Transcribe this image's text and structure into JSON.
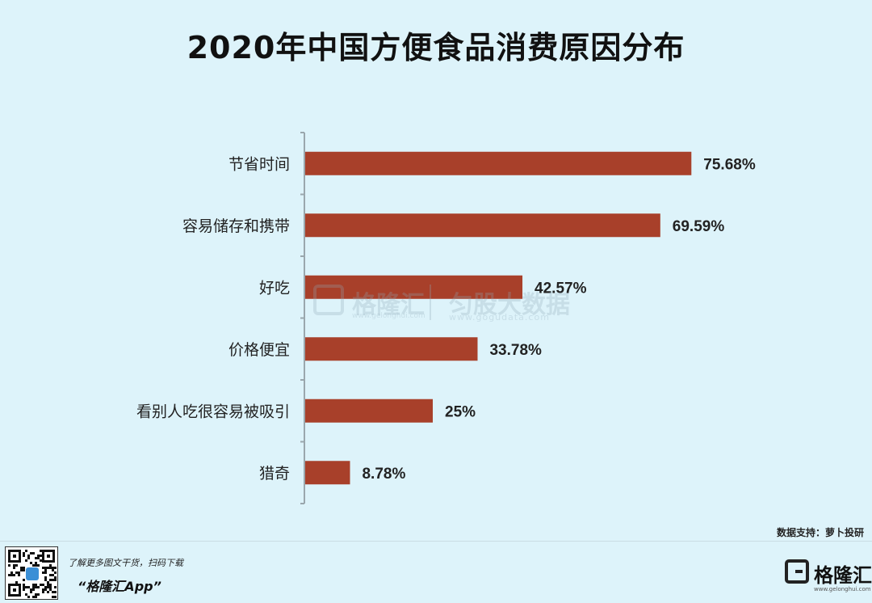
{
  "title": "2020年中国方便食品消费原因分布",
  "chart_data": {
    "type": "bar",
    "orientation": "horizontal",
    "categories": [
      "节省时间",
      "容易储存和携带",
      "好吃",
      "价格便宜",
      "看别人吃很容易被吸引",
      "猎奇"
    ],
    "values": [
      75.68,
      69.59,
      42.57,
      33.78,
      25,
      8.78
    ],
    "value_labels": [
      "75.68%",
      "69.59%",
      "42.57%",
      "33.78%",
      "25%",
      "8.78%"
    ],
    "xlim": [
      0,
      100
    ],
    "grid": false,
    "legend": "none",
    "bar_color": "#a8402a",
    "axis_color": "#9aa7ad"
  },
  "watermark": {
    "name1": "格隆汇",
    "sub1": "www.gelonghui.com",
    "name2": "匀股大数据",
    "sub2": "www.gogudata.com"
  },
  "source": "数据支持：萝卜投研",
  "footer": {
    "promo_line": "了解更多图文干货，扫码下载",
    "promo_app": "“格隆汇App”",
    "brand_name": "格隆汇",
    "brand_sub": "www.gelonghui.com"
  },
  "icons": {
    "qr": "qr-code-icon",
    "brand": "gelonghui-logo-icon"
  }
}
